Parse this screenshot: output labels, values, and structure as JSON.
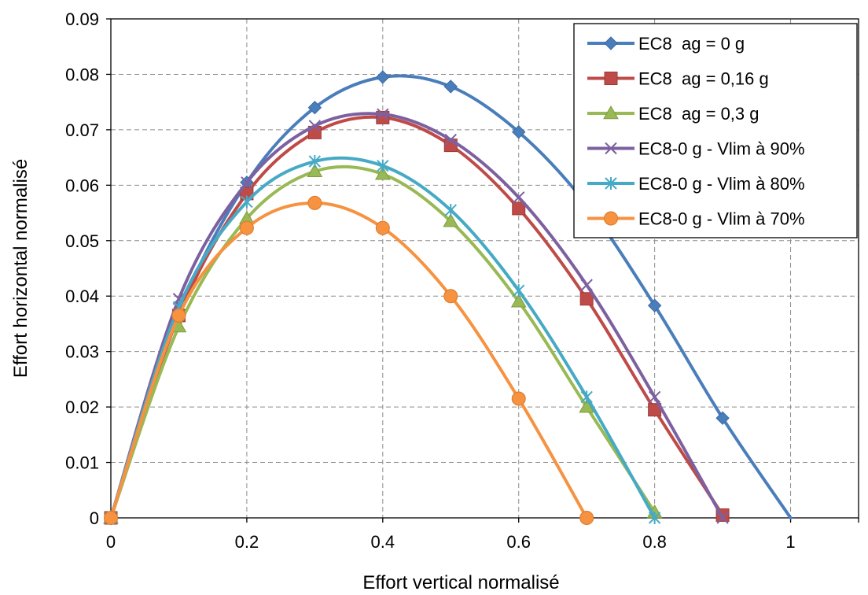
{
  "chart_data": {
    "type": "line",
    "xlabel": "Effort vertical normalisé",
    "ylabel": "Effort horizontal normalisé",
    "xlim": [
      0,
      1.1
    ],
    "ylim": [
      0,
      0.09
    ],
    "x_ticks": [
      "0",
      "0.2",
      "0.4",
      "0.6",
      "0.8",
      "1"
    ],
    "y_ticks": [
      "0",
      "0.01",
      "0.02",
      "0.03",
      "0.04",
      "0.05",
      "0.06",
      "0.07",
      "0.08",
      "0.09"
    ],
    "grid": true,
    "legend_position": "top-right",
    "series": [
      {
        "name": "EC8  ag = 0 g",
        "color": "#4a7ebb",
        "marker": "diamond",
        "x": [
          0,
          0.1,
          0.2,
          0.3,
          0.4,
          0.5,
          0.6,
          0.7,
          0.8,
          0.9,
          1.0
        ],
        "y": [
          0,
          0.037,
          0.0605,
          0.074,
          0.0795,
          0.0778,
          0.0696,
          0.0565,
          0.0383,
          0.018,
          0
        ],
        "hidden_markers": [
          0.7,
          1.0
        ]
      },
      {
        "name": "EC8  ag = 0,16 g",
        "color": "#be4b48",
        "marker": "square",
        "x": [
          0,
          0.1,
          0.2,
          0.3,
          0.4,
          0.5,
          0.6,
          0.7,
          0.8,
          0.9
        ],
        "y": [
          0,
          0.0365,
          0.0585,
          0.0695,
          0.0722,
          0.0672,
          0.0558,
          0.0395,
          0.0195,
          0.0005
        ]
      },
      {
        "name": "EC8  ag = 0,3 g",
        "color": "#98b954",
        "marker": "triangle",
        "x": [
          0,
          0.1,
          0.2,
          0.3,
          0.4,
          0.5,
          0.6,
          0.7,
          0.8
        ],
        "y": [
          0,
          0.0345,
          0.054,
          0.0625,
          0.062,
          0.0535,
          0.039,
          0.02,
          0.001
        ]
      },
      {
        "name": "EC8-0 g - Vlim à 90%",
        "color": "#7d60a0",
        "marker": "x",
        "x": [
          0,
          0.1,
          0.2,
          0.3,
          0.4,
          0.5,
          0.6,
          0.7,
          0.8,
          0.9
        ],
        "y": [
          0,
          0.0395,
          0.0605,
          0.0707,
          0.0728,
          0.0682,
          0.0578,
          0.042,
          0.0218,
          0
        ]
      },
      {
        "name": "EC8-0 g - Vlim à 80%",
        "color": "#46aac5",
        "marker": "asterisk",
        "x": [
          0,
          0.1,
          0.2,
          0.3,
          0.4,
          0.5,
          0.6,
          0.7,
          0.8
        ],
        "y": [
          0,
          0.038,
          0.057,
          0.0643,
          0.0635,
          0.0555,
          0.041,
          0.0218,
          0
        ]
      },
      {
        "name": "EC8-0 g - Vlim à 70%",
        "color": "#f69240",
        "marker": "circle",
        "x": [
          0,
          0.1,
          0.2,
          0.3,
          0.4,
          0.5,
          0.6,
          0.7
        ],
        "y": [
          0,
          0.0365,
          0.0523,
          0.0568,
          0.0523,
          0.04,
          0.0215,
          0
        ]
      }
    ]
  }
}
